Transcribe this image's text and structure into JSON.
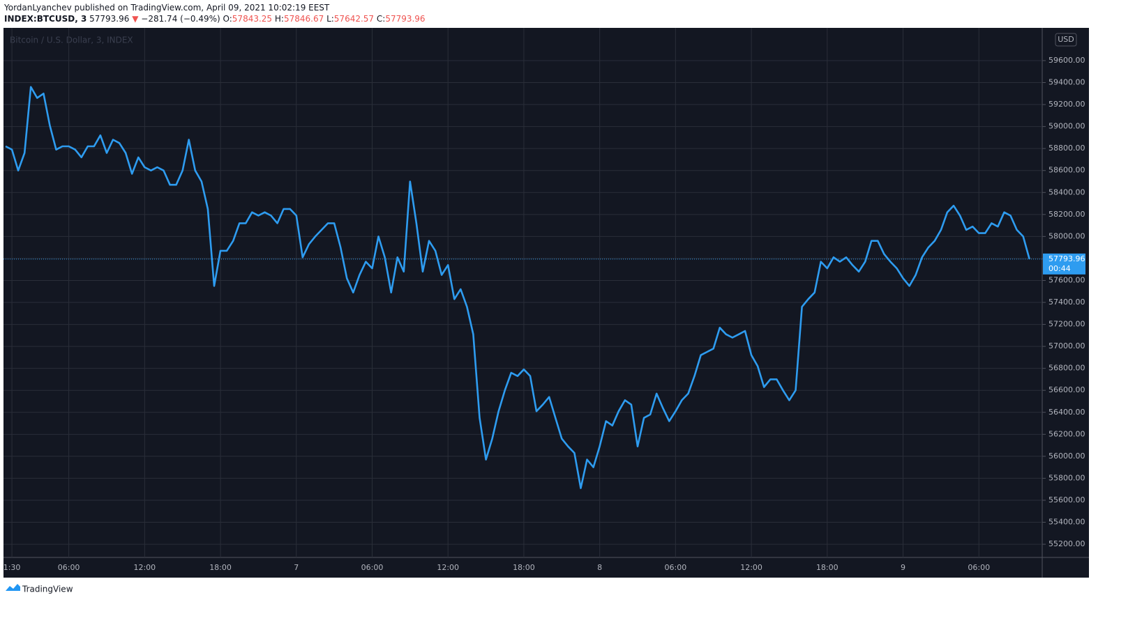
{
  "chart_data": {
    "type": "line",
    "title": "YordanLyanchev published on TradingView.com, April 09, 2021 10:02:19 EEST",
    "symbol": "INDEX:BTCUSD, 3",
    "last_price": 57793.96,
    "change_arrow": "▼",
    "change": "−281.74 (−0.49%)",
    "ohlc_labels": [
      "O:",
      "H:",
      "L:",
      "C:"
    ],
    "ohlc_values": [
      57843.25,
      57846.67,
      57642.57,
      57793.96
    ],
    "watermark": "Bitcoin / U.S. Dollar, 3, INDEX",
    "currency": "USD",
    "countdown": "00:44",
    "brand": "TradingView",
    "grid": true,
    "categories": [
      null,
      "1:30",
      null,
      null,
      null,
      null,
      null,
      null,
      null,
      null,
      "06:00",
      null,
      null,
      null,
      null,
      null,
      null,
      null,
      null,
      null,
      null,
      null,
      "12:00",
      null,
      null,
      null,
      null,
      null,
      null,
      null,
      null,
      null,
      null,
      null,
      "18:00",
      null,
      null,
      null,
      null,
      null,
      null,
      null,
      null,
      null,
      null,
      null,
      "7",
      null,
      null,
      null,
      null,
      null,
      null,
      null,
      null,
      null,
      null,
      null,
      "06:00",
      null,
      null,
      null,
      null,
      null,
      null,
      null,
      null,
      null,
      null,
      null,
      "12:00",
      null,
      null,
      null,
      null,
      null,
      null,
      null,
      null,
      null,
      null,
      null,
      "18:00",
      null,
      null,
      null,
      null,
      null,
      null,
      null,
      null,
      null,
      null,
      null,
      "8",
      null,
      null,
      null,
      null,
      null,
      null,
      null,
      null,
      null,
      null,
      null,
      "06:00",
      null,
      null,
      null,
      null,
      null,
      null,
      null,
      null,
      null,
      null,
      null,
      "12:00",
      null,
      null,
      null,
      null,
      null,
      null,
      null,
      null,
      null,
      null,
      null,
      "18:00",
      null,
      null,
      null,
      null,
      null,
      null,
      null,
      null,
      null,
      null,
      null,
      "9",
      null,
      null,
      null,
      null,
      null,
      null,
      null,
      null,
      null,
      null,
      null,
      "06:00",
      null,
      null,
      null,
      null,
      null,
      null,
      null,
      null
    ],
    "series": [
      {
        "name": "BTCUSD",
        "color": "#2e9cf0",
        "values": [
          58820,
          58790,
          58600,
          58760,
          59360,
          59260,
          59300,
          59010,
          58790,
          58820,
          58820,
          58790,
          58720,
          58820,
          58820,
          58920,
          58760,
          58880,
          58850,
          58760,
          58570,
          58720,
          58630,
          58600,
          58630,
          58600,
          58470,
          58470,
          58600,
          58880,
          58600,
          58500,
          58250,
          57550,
          57870,
          57870,
          57960,
          58120,
          58120,
          58220,
          58190,
          58220,
          58190,
          58120,
          58250,
          58250,
          58190,
          57810,
          57930,
          58000,
          58060,
          58120,
          58120,
          57900,
          57620,
          57490,
          57650,
          57770,
          57710,
          58000,
          57810,
          57490,
          57810,
          57680,
          58500,
          58120,
          57680,
          57960,
          57870,
          57650,
          57740,
          57430,
          57520,
          57360,
          57110,
          56350,
          55970,
          56160,
          56410,
          56600,
          56760,
          56730,
          56790,
          56730,
          56410,
          56470,
          56540,
          56350,
          56160,
          56090,
          56030,
          55710,
          55970,
          55900,
          56090,
          56320,
          56280,
          56410,
          56510,
          56470,
          56090,
          56350,
          56380,
          56570,
          56440,
          56320,
          56410,
          56510,
          56570,
          56730,
          56920,
          56950,
          56980,
          57170,
          57110,
          57080,
          57110,
          57140,
          56920,
          56820,
          56630,
          56700,
          56700,
          56600,
          56510,
          56600,
          57360,
          57430,
          57490,
          57770,
          57710,
          57810,
          57770,
          57810,
          57740,
          57680,
          57770,
          57960,
          57960,
          57840,
          57770,
          57710,
          57620,
          57550,
          57650,
          57810,
          57900,
          57960,
          58060,
          58220,
          58280,
          58190,
          58060,
          58090,
          58030,
          58030,
          58120,
          58090,
          58220,
          58190,
          58060,
          58000,
          57793.96
        ]
      }
    ],
    "ylim": [
      55080,
      59885
    ],
    "yticks": [
      {
        "value": 55200,
        "label": "55200.00"
      },
      {
        "value": 55400,
        "label": "55400.00"
      },
      {
        "value": 55600,
        "label": "55600.00"
      },
      {
        "value": 55800,
        "label": "55800.00"
      },
      {
        "value": 56000,
        "label": "56000.00"
      },
      {
        "value": 56200,
        "label": "56200.00"
      },
      {
        "value": 56400,
        "label": "56400.00"
      },
      {
        "value": 56600,
        "label": "56600.00"
      },
      {
        "value": 56800,
        "label": "56800.00"
      },
      {
        "value": 57000,
        "label": "57000.00"
      },
      {
        "value": 57200,
        "label": "57200.00"
      },
      {
        "value": 57400,
        "label": "57400.00"
      },
      {
        "value": 57600,
        "label": "57600.00"
      },
      {
        "value": 57800,
        "label": "57800.00"
      },
      {
        "value": 58000,
        "label": "58000.00"
      },
      {
        "value": 58200,
        "label": "58200.00"
      },
      {
        "value": 58400,
        "label": "58400.00"
      },
      {
        "value": 58600,
        "label": "58600.00"
      },
      {
        "value": 58800,
        "label": "58800.00"
      },
      {
        "value": 59000,
        "label": "59000.00"
      },
      {
        "value": 59200,
        "label": "59200.00"
      },
      {
        "value": 59400,
        "label": "59400.00"
      },
      {
        "value": 59600,
        "label": "59600.00"
      }
    ]
  }
}
